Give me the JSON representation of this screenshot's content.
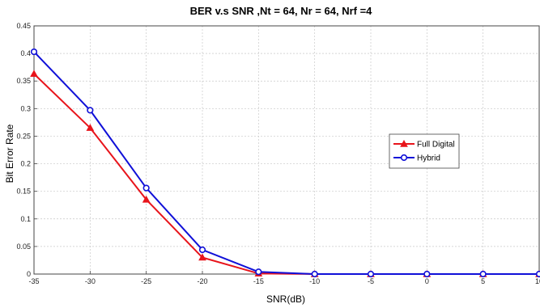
{
  "chart_data": {
    "type": "line",
    "title": "BER v.s SNR ,Nt = 64, Nr = 64, Nrf =4",
    "xlabel": "SNR(dB)",
    "ylabel": "Bit Error Rate",
    "xlim": [
      -35,
      10
    ],
    "ylim": [
      0,
      0.45
    ],
    "x_ticks": [
      -35,
      -30,
      -25,
      -20,
      -15,
      -10,
      -5,
      0,
      5,
      10
    ],
    "x_tick_labels": [
      "-35",
      "-30",
      "-25",
      "-20",
      "-15",
      "-10",
      "-5",
      "0",
      "5",
      "10"
    ],
    "y_ticks": [
      0,
      0.05,
      0.1,
      0.15,
      0.2,
      0.25,
      0.3,
      0.35,
      0.4,
      0.45
    ],
    "y_tick_labels": [
      "0",
      "0.05",
      "0.1",
      "0.15",
      "0.2",
      "0.25",
      "0.3",
      "0.35",
      "0.4",
      "0.45"
    ],
    "grid": true,
    "legend_position": "center-right",
    "x": [
      -35,
      -30,
      -25,
      -20,
      -15,
      -10,
      -5,
      0,
      5,
      10
    ],
    "series": [
      {
        "name": "Full Digital",
        "color": "#e8141b",
        "marker": "triangle",
        "values": [
          0.363,
          0.265,
          0.135,
          0.03,
          0.001,
          0.0,
          0.0,
          0.0,
          0.0,
          0.0
        ]
      },
      {
        "name": "Hybrid",
        "color": "#1010d8",
        "marker": "circle",
        "values": [
          0.403,
          0.297,
          0.156,
          0.044,
          0.004,
          0.0,
          0.0,
          0.0,
          0.0,
          0.0
        ]
      }
    ]
  }
}
